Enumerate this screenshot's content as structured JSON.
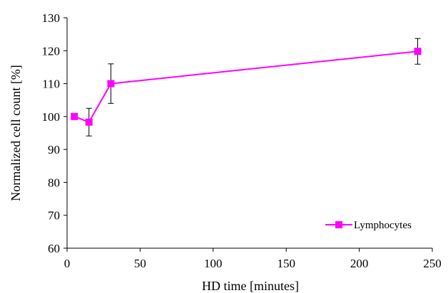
{
  "chart_data": {
    "type": "line",
    "title": "",
    "xlabel": "HD time [minutes]",
    "ylabel": "Normalized cell count [%]",
    "xlim": [
      0,
      250
    ],
    "ylim": [
      60,
      130
    ],
    "xticks": [
      0,
      50,
      100,
      150,
      200,
      250
    ],
    "yticks": [
      60,
      70,
      80,
      90,
      100,
      110,
      120,
      130
    ],
    "grid": false,
    "legend_position": "bottom-right",
    "series": [
      {
        "name": "Lymphocytes",
        "color": "#FF00FF",
        "marker": "square",
        "x": [
          5,
          15,
          30,
          240
        ],
        "y": [
          100,
          98.3,
          110,
          119.8
        ],
        "error": [
          0,
          4.2,
          6,
          3.9
        ]
      }
    ]
  }
}
